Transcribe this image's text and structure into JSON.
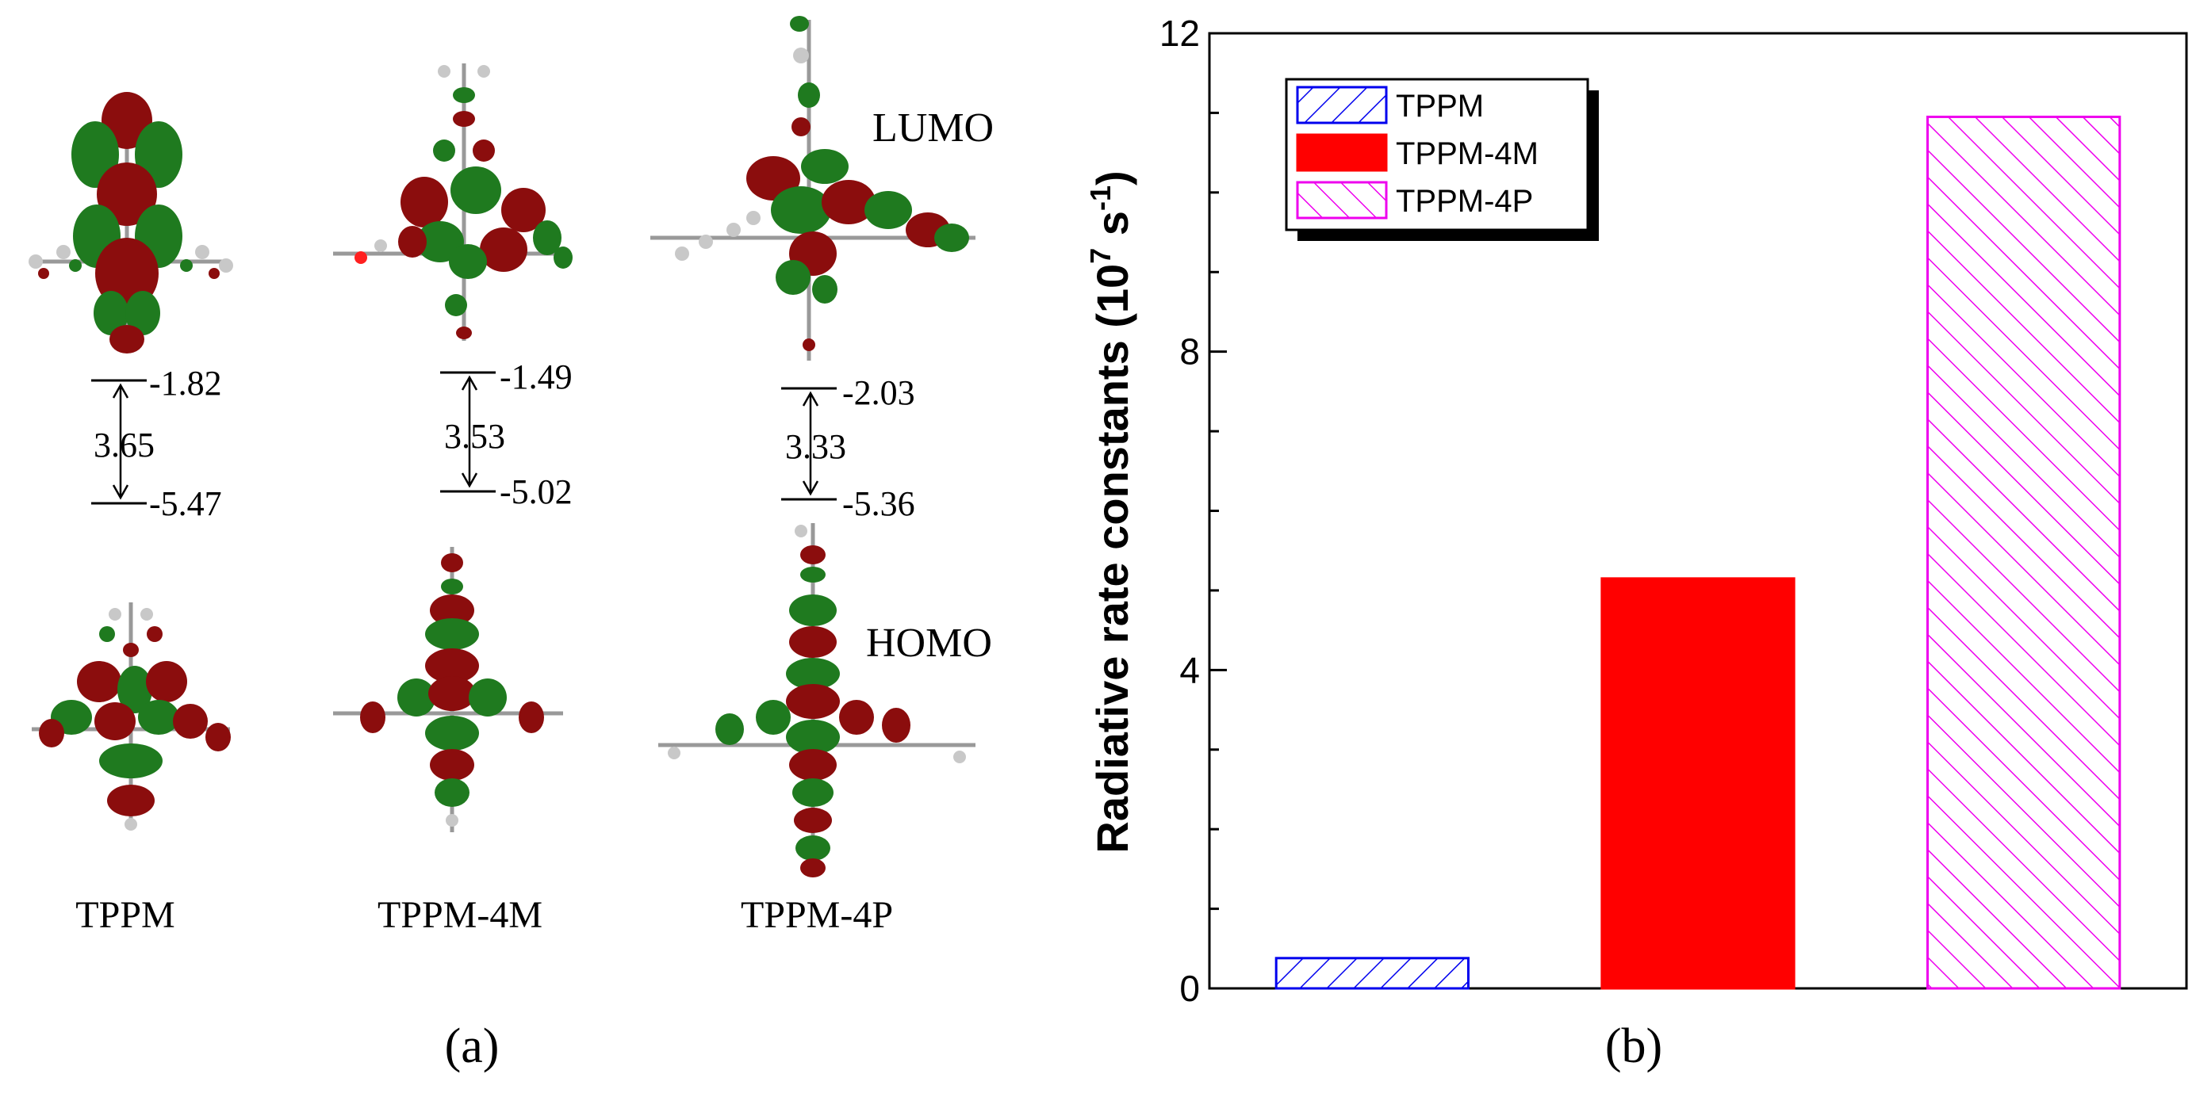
{
  "panel_a": {
    "caption": "(a)",
    "labels": {
      "lumo": "LUMO",
      "homo": "HOMO"
    },
    "molecules": [
      {
        "name": "TPPM",
        "lumo": "-1.82",
        "homo": "-5.47",
        "gap": "3.65"
      },
      {
        "name": "TPPM-4M",
        "lumo": "-1.49",
        "homo": "-5.02",
        "gap": "3.53"
      },
      {
        "name": "TPPM-4P",
        "lumo": "-2.03",
        "homo": "-5.36",
        "gap": "3.33"
      }
    ],
    "colors": {
      "lobe_positive": "#1f7a1f",
      "lobe_negative": "#8b0d0d",
      "atom": "#c8c8c8"
    }
  },
  "panel_b": {
    "caption": "(b)"
  },
  "chart_data": {
    "type": "bar",
    "title": "",
    "xlabel": "",
    "ylabel": "Radiative rate constants (10^7 s^-1)",
    "ylabel_parts": {
      "main": "Radiative rate constants (10",
      "exp1": "7",
      "mid": " s",
      "exp2": "-1",
      "end": ")"
    },
    "categories": [
      "TPPM",
      "TPPM-4M",
      "TPPM-4P"
    ],
    "values": [
      0.38,
      5.15,
      10.95
    ],
    "ylim": [
      0,
      12
    ],
    "yticks": [
      0,
      4,
      8,
      12
    ],
    "ytick_labels": [
      "0",
      "4",
      "8",
      "12"
    ],
    "grid": false,
    "legend": {
      "position": "top-left",
      "entries": [
        {
          "label": "TPPM",
          "color": "#0000ee",
          "fill": "hatch-forward"
        },
        {
          "label": "TPPM-4M",
          "color": "#ff0000",
          "fill": "solid"
        },
        {
          "label": "TPPM-4P",
          "color": "#ee00ee",
          "fill": "hatch-back"
        }
      ]
    }
  }
}
